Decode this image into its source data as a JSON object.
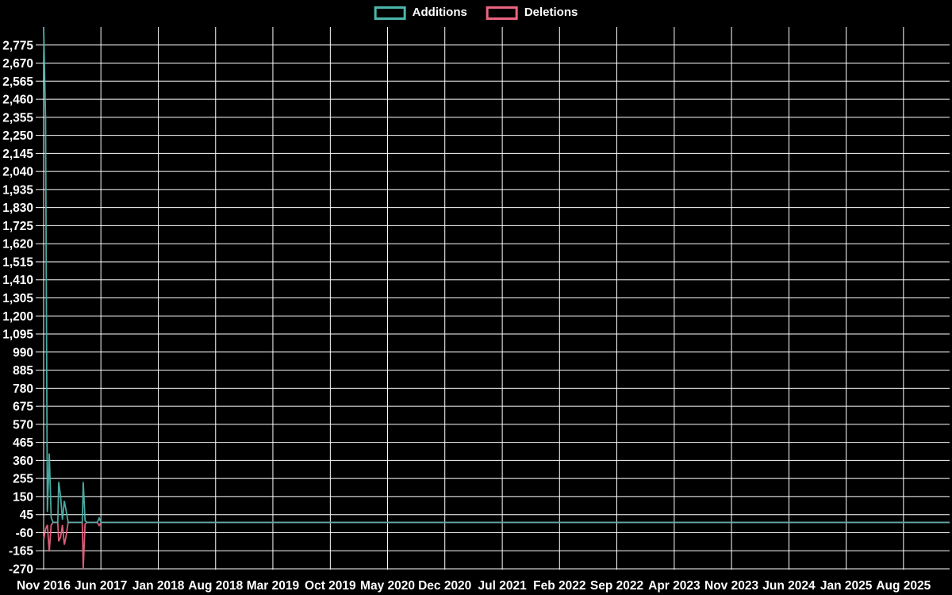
{
  "chart_data": {
    "type": "line",
    "title": "",
    "description": "Weekly additions and deletions code-frequency chart on black background",
    "legend_position": "top-center",
    "grid": true,
    "grid_color": "#ffffff",
    "background_color": "#000000",
    "label_color": "#ffffff",
    "baseline_blend_color": "#8fb3b5",
    "x_axis": {
      "unit": "weeks since Nov 2016",
      "x_max_weeks": 481,
      "ticks": [
        {
          "label": "Nov 2016",
          "week": 0
        },
        {
          "label": "Jun 2017",
          "week": 30.4
        },
        {
          "label": "Jan 2018",
          "week": 60.9
        },
        {
          "label": "Aug 2018",
          "week": 91.3
        },
        {
          "label": "Mar 2019",
          "week": 121.7
        },
        {
          "label": "Oct 2019",
          "week": 152.2
        },
        {
          "label": "May 2020",
          "week": 182.6
        },
        {
          "label": "Dec 2020",
          "week": 213.0
        },
        {
          "label": "Jul 2021",
          "week": 243.5
        },
        {
          "label": "Feb 2022",
          "week": 273.9
        },
        {
          "label": "Sep 2022",
          "week": 304.3
        },
        {
          "label": "Apr 2023",
          "week": 334.8
        },
        {
          "label": "Nov 2023",
          "week": 365.2
        },
        {
          "label": "Jun 2024",
          "week": 395.7
        },
        {
          "label": "Jan 2025",
          "week": 426.1
        },
        {
          "label": "Aug 2025",
          "week": 456.5
        }
      ]
    },
    "y_axis": {
      "min": -270,
      "max": 2880,
      "tick_interval": 105,
      "first_labeled_tick": -270,
      "last_labeled_tick": 2775
    },
    "series": [
      {
        "name": "Additions",
        "color": "#4db6ac",
        "points": [
          [
            0,
            2880
          ],
          [
            1,
            2355
          ],
          [
            2,
            60
          ],
          [
            3,
            400
          ],
          [
            4,
            30
          ],
          [
            5,
            0
          ],
          [
            7.5,
            0
          ],
          [
            8,
            235
          ],
          [
            9,
            150
          ],
          [
            10,
            15
          ],
          [
            11,
            125
          ],
          [
            12,
            65
          ],
          [
            13,
            0
          ],
          [
            20.5,
            0
          ],
          [
            21,
            235
          ],
          [
            22,
            10
          ],
          [
            23,
            0
          ],
          [
            28.5,
            0
          ],
          [
            29.5,
            25
          ],
          [
            30.5,
            0
          ],
          [
            481,
            0
          ]
        ]
      },
      {
        "name": "Deletions",
        "color": "#ec6480",
        "points": [
          [
            0,
            -100
          ],
          [
            1,
            -40
          ],
          [
            2,
            -15
          ],
          [
            3,
            -170
          ],
          [
            4,
            -15
          ],
          [
            5,
            0
          ],
          [
            7.5,
            0
          ],
          [
            8,
            -110
          ],
          [
            9,
            -85
          ],
          [
            10,
            -15
          ],
          [
            11,
            -130
          ],
          [
            12,
            -75
          ],
          [
            13,
            0
          ],
          [
            20.5,
            0
          ],
          [
            21,
            -270
          ],
          [
            22,
            -10
          ],
          [
            23,
            0
          ],
          [
            28.5,
            0
          ],
          [
            29.5,
            -18
          ],
          [
            30.5,
            0
          ],
          [
            481,
            0
          ]
        ]
      }
    ]
  }
}
